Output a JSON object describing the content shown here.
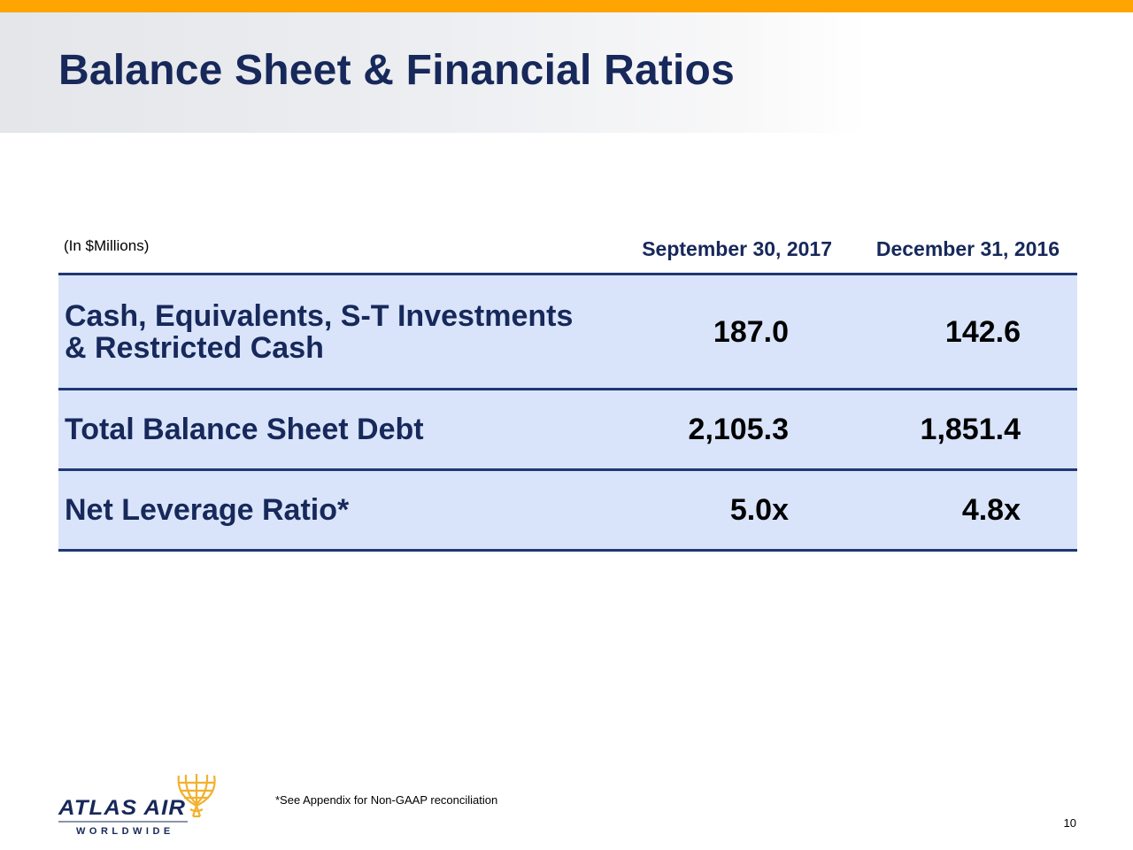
{
  "slide": {
    "title": "Balance Sheet & Financial Ratios",
    "units_note": "(In $Millions)",
    "columns": [
      "September 30, 2017",
      "December 31, 2016"
    ],
    "rows": [
      {
        "label_lines": [
          "Cash, Equivalents, S-T Investments",
          "& Restricted Cash"
        ],
        "values": [
          "187.0",
          "142.6"
        ]
      },
      {
        "label_lines": [
          "Total Balance Sheet Debt"
        ],
        "values": [
          "2,105.3",
          "1,851.4"
        ]
      },
      {
        "label_lines": [
          "Net Leverage Ratio*"
        ],
        "values": [
          "5.0x",
          "4.8x"
        ]
      }
    ],
    "footnote": "*See Appendix for Non-GAAP reconciliation",
    "page_number": "10"
  },
  "logo": {
    "name": "ATLAS AIR",
    "tagline": "WORLDWIDE",
    "icon": "globe-icon"
  },
  "colors": {
    "accent_bar": "#FFA400",
    "title": "#17285a",
    "table_fill": "#d9e4fa",
    "rule": "#1f3872",
    "logo_gold": "#F2B12E"
  }
}
